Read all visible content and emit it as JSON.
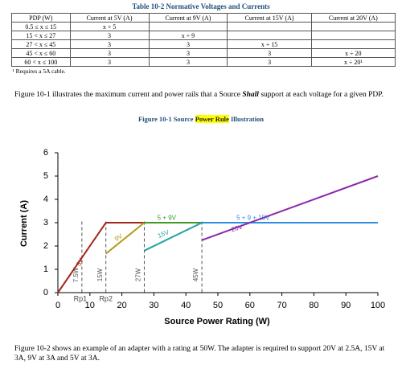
{
  "table": {
    "title": "Table 10-2 Normative Voltages and Currents",
    "header": [
      "PDP (W)",
      "Current at 5V (A)",
      "Current at 9V (A)",
      "Current at 15V (A)",
      "Current at 20V (A)"
    ],
    "rows": [
      [
        "0.5 ≤ x ≤ 15",
        "x ÷ 5",
        null,
        null,
        null
      ],
      [
        "15 < x ≤ 27",
        "3",
        "x ÷ 9",
        null,
        null
      ],
      [
        "27 < x ≤ 45",
        "3",
        "3",
        "x ÷ 15",
        null
      ],
      [
        "45 < x ≤ 60",
        "3",
        "3",
        "3",
        "x ÷ 20"
      ],
      [
        "60 < x ≤ 100",
        "3",
        "3",
        "3",
        "x ÷ 20¹"
      ]
    ],
    "footnote": "¹ Requires a 5A cable."
  },
  "paragraph1": {
    "before": "Figure 10-1 illustrates the maximum current and power rails that a Source ",
    "emphasis": "Shall",
    "after": " support at each voltage for a given PDP."
  },
  "caption": {
    "before": "Figure 10-1 Source ",
    "highlight": "Power Rule",
    "after": " Illustration"
  },
  "chart_data": {
    "type": "line",
    "xlabel": "Source Power Rating (W)",
    "ylabel": "Current (A)",
    "xlim": [
      0,
      100
    ],
    "ylim": [
      0,
      6
    ],
    "xticks": [
      0,
      10,
      20,
      30,
      40,
      50,
      60,
      70,
      80,
      90,
      100
    ],
    "yticks": [
      0,
      1,
      2,
      3,
      4,
      5,
      6
    ],
    "series": [
      {
        "name": "5V",
        "color": "#a3261c",
        "x": [
          0,
          15,
          27
        ],
        "values": [
          0,
          3,
          3
        ]
      },
      {
        "name": "9V",
        "color": "#b39a1a",
        "x": [
          15,
          27
        ],
        "values": [
          1.67,
          3
        ]
      },
      {
        "name": "5 + 9V",
        "color": "#3c9a2a",
        "x": [
          27,
          45
        ],
        "values": [
          3,
          3
        ]
      },
      {
        "name": "15V",
        "color": "#26a0a0",
        "x": [
          27,
          45
        ],
        "values": [
          1.8,
          3
        ]
      },
      {
        "name": "5 + 9 + 15V",
        "color": "#2e8fe0",
        "x": [
          45,
          100
        ],
        "values": [
          3,
          3
        ]
      },
      {
        "name": "20V",
        "color": "#8a2aa8",
        "x": [
          45,
          100
        ],
        "values": [
          2.25,
          5
        ]
      }
    ],
    "markers": [
      {
        "x": 7.5,
        "label": "7.5W"
      },
      {
        "x": 15,
        "label": "15W"
      },
      {
        "x": 27,
        "label": "27W"
      },
      {
        "x": 45,
        "label": "45W"
      }
    ],
    "annotations": [
      {
        "x": 7,
        "text": "Rp1"
      },
      {
        "x": 15,
        "text": "Rp2"
      }
    ]
  },
  "paragraph2": "Figure 10-2 shows an example of an adapter with a rating at 50W. The adapter is required to support 20V at 2.5A, 15V at 3A, 9V at 3A and 5V at 3A."
}
